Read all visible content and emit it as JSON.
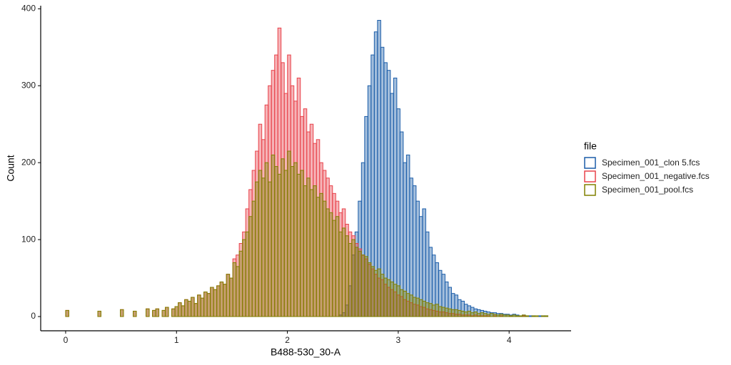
{
  "chart_data": {
    "type": "histogram",
    "x_label": "B488-530_30-A",
    "y_label": "Count",
    "legend_title": "file",
    "legend_position": "right",
    "xlim": [
      -0.225,
      4.559
    ],
    "xticks": [
      0,
      1,
      2,
      3,
      4
    ],
    "ylim": [
      -18.5,
      404
    ],
    "yticks": [
      0,
      100,
      200,
      300,
      400
    ],
    "bins": [
      0,
      0.029,
      0.058,
      0.087,
      0.116,
      0.145,
      0.174,
      0.203,
      0.232,
      0.261,
      0.29,
      0.319,
      0.348,
      0.377,
      0.406,
      0.435,
      0.464,
      0.493,
      0.522,
      0.551,
      0.58,
      0.609,
      0.638,
      0.667,
      0.696,
      0.725,
      0.754,
      0.783,
      0.812,
      0.841,
      0.87,
      0.899,
      0.928,
      0.957,
      0.986,
      1.015,
      1.044,
      1.073,
      1.102,
      1.131,
      1.16,
      1.189,
      1.218,
      1.247,
      1.276,
      1.305,
      1.334,
      1.363,
      1.392,
      1.421,
      1.45,
      1.479,
      1.508,
      1.537,
      1.566,
      1.595,
      1.624,
      1.653,
      1.682,
      1.711,
      1.74,
      1.769,
      1.798,
      1.827,
      1.856,
      1.885,
      1.914,
      1.943,
      1.972,
      2.001,
      2.03,
      2.059,
      2.088,
      2.117,
      2.146,
      2.175,
      2.204,
      2.233,
      2.262,
      2.291,
      2.32,
      2.349,
      2.378,
      2.407,
      2.436,
      2.465,
      2.494,
      2.523,
      2.552,
      2.581,
      2.61,
      2.639,
      2.668,
      2.697,
      2.726,
      2.755,
      2.784,
      2.813,
      2.842,
      2.871,
      2.9,
      2.929,
      2.958,
      2.987,
      3.016,
      3.045,
      3.074,
      3.103,
      3.132,
      3.161,
      3.19,
      3.219,
      3.248,
      3.277,
      3.306,
      3.335,
      3.364,
      3.393,
      3.422,
      3.451,
      3.48,
      3.509,
      3.538,
      3.567,
      3.596,
      3.625,
      3.654,
      3.683,
      3.712,
      3.741,
      3.77,
      3.799,
      3.828,
      3.857,
      3.886,
      3.915,
      3.944,
      3.973,
      4.002,
      4.031,
      4.06,
      4.089,
      4.118,
      4.147,
      4.176,
      4.205,
      4.234,
      4.263,
      4.292,
      4.321,
      4.35
    ],
    "series": [
      {
        "name": "Specimen_001_clon 5.fcs",
        "color": "#1a5ca8",
        "values": [
          0,
          0,
          0,
          0,
          0,
          0,
          0,
          0,
          0,
          0,
          0,
          0,
          0,
          0,
          0,
          0,
          0,
          0,
          0,
          0,
          0,
          0,
          0,
          0,
          0,
          0,
          0,
          0,
          0,
          0,
          0,
          0,
          0,
          0,
          0,
          0,
          0,
          0,
          0,
          0,
          0,
          0,
          0,
          0,
          0,
          0,
          0,
          0,
          0,
          0,
          0,
          0,
          0,
          0,
          0,
          0,
          0,
          0,
          0,
          0,
          0,
          0,
          0,
          0,
          0,
          0,
          0,
          0,
          0,
          0,
          0,
          0,
          0,
          0,
          0,
          0,
          0,
          0,
          0,
          0,
          0,
          0,
          0,
          0,
          0,
          2,
          5,
          15,
          40,
          80,
          110,
          150,
          200,
          260,
          300,
          340,
          370,
          385,
          350,
          330,
          320,
          290,
          310,
          270,
          240,
          200,
          210,
          180,
          170,
          150,
          130,
          140,
          110,
          90,
          80,
          70,
          60,
          55,
          45,
          38,
          30,
          28,
          22,
          20,
          16,
          14,
          12,
          10,
          9,
          8,
          7,
          6,
          5,
          5,
          4,
          4,
          3,
          3,
          2,
          3,
          2,
          1,
          2,
          1,
          1,
          1,
          0,
          1,
          1,
          1
        ]
      },
      {
        "name": "Specimen_001_negative.fcs",
        "color": "#e8424a",
        "values": [
          8,
          0,
          0,
          0,
          0,
          0,
          0,
          0,
          0,
          0,
          7,
          0,
          0,
          0,
          0,
          0,
          0,
          9,
          0,
          0,
          0,
          7,
          0,
          0,
          0,
          10,
          0,
          8,
          10,
          0,
          8,
          12,
          0,
          10,
          13,
          18,
          14,
          22,
          20,
          25,
          17,
          28,
          24,
          32,
          30,
          38,
          35,
          40,
          45,
          42,
          55,
          50,
          75,
          80,
          95,
          110,
          140,
          165,
          190,
          215,
          250,
          230,
          275,
          300,
          320,
          340,
          375,
          330,
          290,
          340,
          300,
          280,
          310,
          260,
          270,
          240,
          250,
          225,
          230,
          200,
          190,
          180,
          170,
          160,
          150,
          135,
          140,
          120,
          110,
          105,
          95,
          88,
          80,
          75,
          68,
          62,
          55,
          50,
          48,
          42,
          38,
          35,
          32,
          28,
          26,
          22,
          20,
          18,
          16,
          15,
          13,
          12,
          10,
          9,
          8,
          7,
          6,
          6,
          5,
          4,
          4,
          3,
          3,
          2,
          2,
          2,
          1,
          2,
          1,
          1,
          1,
          1,
          0,
          1,
          0,
          1,
          0,
          0,
          1,
          0,
          0,
          0,
          1,
          0,
          0,
          0,
          0,
          0,
          0,
          0
        ]
      },
      {
        "name": "Specimen_001_pool.fcs",
        "color": "#808000",
        "values": [
          8,
          0,
          0,
          0,
          0,
          0,
          0,
          0,
          0,
          0,
          7,
          0,
          0,
          0,
          0,
          0,
          0,
          9,
          0,
          0,
          0,
          7,
          0,
          0,
          0,
          10,
          0,
          8,
          10,
          0,
          8,
          12,
          0,
          10,
          13,
          18,
          14,
          22,
          20,
          25,
          17,
          28,
          24,
          32,
          30,
          38,
          35,
          40,
          45,
          42,
          55,
          50,
          70,
          65,
          85,
          100,
          110,
          130,
          150,
          175,
          190,
          180,
          200,
          175,
          210,
          195,
          185,
          205,
          190,
          215,
          195,
          200,
          185,
          190,
          170,
          180,
          165,
          170,
          155,
          160,
          150,
          140,
          135,
          125,
          130,
          110,
          115,
          105,
          95,
          100,
          90,
          85,
          80,
          78,
          70,
          65,
          60,
          62,
          55,
          50,
          48,
          45,
          42,
          40,
          35,
          33,
          30,
          28,
          25,
          24,
          22,
          20,
          18,
          17,
          15,
          16,
          13,
          12,
          11,
          10,
          9,
          9,
          8,
          7,
          6,
          7,
          5,
          6,
          4,
          5,
          4,
          3,
          4,
          3,
          2,
          3,
          2,
          2,
          1,
          2,
          1,
          1,
          2,
          1,
          0,
          1,
          1,
          0,
          1,
          1
        ]
      }
    ]
  }
}
